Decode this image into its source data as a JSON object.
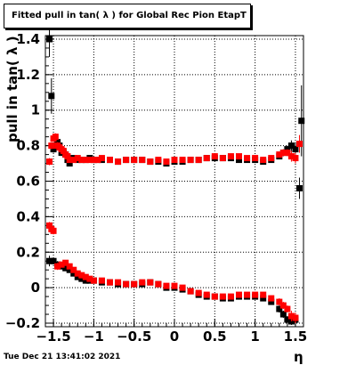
{
  "title": "Fitted pull in tan( λ ) for Global Rec Pion EtapT",
  "timestamp": "Tue Dec 21 13:41:02 2021",
  "chart_data": {
    "type": "scatter",
    "xlabel": "η",
    "ylabel": "pull in tan( λ )",
    "xlim": [
      -1.6,
      1.6
    ],
    "ylim": [
      -0.22,
      1.42
    ],
    "xticks": [
      -1.5,
      -1,
      -0.5,
      0,
      0.5,
      1,
      1.5
    ],
    "xtick_labels": [
      "−1.5",
      "−1",
      "−0.5",
      "0",
      "0.5",
      "1",
      "1.5"
    ],
    "yticks": [
      -0.2,
      0,
      0.2,
      0.4,
      0.6,
      0.8,
      1,
      1.2,
      1.4
    ],
    "ytick_labels": [
      "−0.2",
      "0",
      "0.2",
      "0.4",
      "0.6",
      "0.8",
      "1",
      "1.2",
      "1.4"
    ],
    "grid": true,
    "series": [
      {
        "color": "#000000",
        "x": [
          -1.55,
          -1.525,
          -1.5,
          -1.475,
          -1.45,
          -1.425,
          -1.4,
          -1.375,
          -1.35,
          -1.325,
          -1.3,
          -1.25,
          -1.2,
          -1.15,
          -1.1,
          -1.05,
          -1.0,
          -0.95,
          -0.9,
          -0.8,
          -0.7,
          -0.6,
          -0.5,
          -0.4,
          -0.3,
          -0.2,
          -0.1,
          0.0,
          0.1,
          0.2,
          0.3,
          0.4,
          0.5,
          0.6,
          0.7,
          0.8,
          0.9,
          1.0,
          1.1,
          1.2,
          1.3,
          1.35,
          1.4,
          1.45,
          1.5,
          1.55,
          1.575
        ],
        "y": [
          1.4,
          1.08,
          0.78,
          0.8,
          0.82,
          0.8,
          0.76,
          0.76,
          0.75,
          0.72,
          0.7,
          0.73,
          0.72,
          0.72,
          0.72,
          0.73,
          0.72,
          0.72,
          0.72,
          0.72,
          0.71,
          0.72,
          0.72,
          0.72,
          0.71,
          0.71,
          0.7,
          0.71,
          0.71,
          0.72,
          0.72,
          0.73,
          0.73,
          0.73,
          0.73,
          0.72,
          0.72,
          0.72,
          0.71,
          0.72,
          0.74,
          0.76,
          0.78,
          0.8,
          0.78,
          0.56,
          0.94
        ],
        "yerr": [
          0.1,
          0.1,
          0.02,
          0.02,
          0.02,
          0.02,
          0.01,
          0.01,
          0.01,
          0.01,
          0.01,
          0.01,
          0.01,
          0.01,
          0.01,
          0.01,
          0.01,
          0.01,
          0.01,
          0.01,
          0.01,
          0.01,
          0.01,
          0.01,
          0.01,
          0.01,
          0.01,
          0.01,
          0.01,
          0.01,
          0.01,
          0.01,
          0.01,
          0.01,
          0.01,
          0.01,
          0.01,
          0.01,
          0.01,
          0.01,
          0.01,
          0.02,
          0.02,
          0.03,
          0.04,
          0.06,
          0.2
        ]
      },
      {
        "color": "#ff0000",
        "x": [
          -1.55,
          -1.525,
          -1.5,
          -1.475,
          -1.45,
          -1.425,
          -1.4,
          -1.375,
          -1.35,
          -1.325,
          -1.3,
          -1.25,
          -1.2,
          -1.15,
          -1.1,
          -1.05,
          -1.0,
          -0.95,
          -0.9,
          -0.8,
          -0.7,
          -0.6,
          -0.5,
          -0.4,
          -0.3,
          -0.2,
          -0.1,
          0.0,
          0.1,
          0.2,
          0.3,
          0.4,
          0.5,
          0.6,
          0.7,
          0.8,
          0.9,
          1.0,
          1.1,
          1.2,
          1.3,
          1.35,
          1.4,
          1.45,
          1.5,
          1.55
        ],
        "y": [
          0.71,
          0.8,
          0.84,
          0.85,
          0.8,
          0.79,
          0.78,
          0.77,
          0.75,
          0.74,
          0.72,
          0.72,
          0.73,
          0.72,
          0.72,
          0.72,
          0.72,
          0.72,
          0.73,
          0.72,
          0.71,
          0.72,
          0.72,
          0.72,
          0.71,
          0.72,
          0.71,
          0.72,
          0.72,
          0.72,
          0.72,
          0.73,
          0.74,
          0.73,
          0.74,
          0.74,
          0.73,
          0.73,
          0.72,
          0.73,
          0.75,
          0.76,
          0.76,
          0.74,
          0.73,
          0.81
        ],
        "yerr": [
          0.02,
          0.02,
          0.02,
          0.02,
          0.02,
          0.02,
          0.01,
          0.01,
          0.01,
          0.01,
          0.01,
          0.01,
          0.01,
          0.01,
          0.01,
          0.01,
          0.01,
          0.01,
          0.01,
          0.01,
          0.01,
          0.01,
          0.01,
          0.01,
          0.01,
          0.01,
          0.01,
          0.01,
          0.01,
          0.01,
          0.01,
          0.01,
          0.01,
          0.01,
          0.01,
          0.01,
          0.01,
          0.01,
          0.01,
          0.01,
          0.01,
          0.02,
          0.02,
          0.03,
          0.03,
          0.05
        ]
      },
      {
        "color": "#000000",
        "x": [
          -1.55,
          -1.5,
          -1.45,
          -1.4,
          -1.35,
          -1.3,
          -1.25,
          -1.2,
          -1.15,
          -1.1,
          -1.05,
          -1.0,
          -0.9,
          -0.8,
          -0.7,
          -0.6,
          -0.5,
          -0.4,
          -0.3,
          -0.2,
          -0.1,
          0.0,
          0.1,
          0.2,
          0.3,
          0.4,
          0.5,
          0.6,
          0.7,
          0.8,
          0.9,
          1.0,
          1.1,
          1.2,
          1.3,
          1.35,
          1.4,
          1.45,
          1.5
        ],
        "y": [
          0.15,
          0.15,
          0.13,
          0.12,
          0.11,
          0.1,
          0.08,
          0.06,
          0.05,
          0.04,
          0.04,
          0.04,
          0.03,
          0.03,
          0.02,
          0.02,
          0.02,
          0.02,
          0.03,
          0.02,
          0.0,
          0.0,
          -0.01,
          -0.02,
          -0.04,
          -0.05,
          -0.05,
          -0.06,
          -0.06,
          -0.05,
          -0.05,
          -0.05,
          -0.06,
          -0.08,
          -0.12,
          -0.15,
          -0.18,
          -0.19,
          -0.18
        ],
        "yerr": [
          0.03,
          0.02,
          0.02,
          0.01,
          0.01,
          0.01,
          0.01,
          0.01,
          0.01,
          0.01,
          0.01,
          0.01,
          0.01,
          0.01,
          0.01,
          0.01,
          0.01,
          0.01,
          0.01,
          0.01,
          0.01,
          0.01,
          0.01,
          0.01,
          0.01,
          0.01,
          0.01,
          0.01,
          0.01,
          0.01,
          0.01,
          0.01,
          0.01,
          0.01,
          0.02,
          0.02,
          0.02,
          0.02,
          0.03
        ]
      },
      {
        "color": "#ff0000",
        "x": [
          -1.55,
          -1.525,
          -1.5,
          -1.45,
          -1.4,
          -1.35,
          -1.3,
          -1.25,
          -1.2,
          -1.15,
          -1.1,
          -1.05,
          -1.0,
          -0.9,
          -0.8,
          -0.7,
          -0.6,
          -0.5,
          -0.4,
          -0.3,
          -0.2,
          -0.1,
          0.0,
          0.1,
          0.2,
          0.3,
          0.4,
          0.5,
          0.6,
          0.7,
          0.8,
          0.9,
          1.0,
          1.1,
          1.2,
          1.3,
          1.35,
          1.4,
          1.45,
          1.5
        ],
        "y": [
          0.35,
          0.33,
          0.32,
          0.12,
          0.13,
          0.14,
          0.12,
          0.1,
          0.08,
          0.07,
          0.06,
          0.05,
          0.04,
          0.04,
          0.03,
          0.03,
          0.02,
          0.02,
          0.03,
          0.03,
          0.02,
          0.01,
          0.01,
          0.0,
          -0.02,
          -0.03,
          -0.04,
          -0.05,
          -0.05,
          -0.05,
          -0.04,
          -0.04,
          -0.04,
          -0.04,
          -0.06,
          -0.08,
          -0.1,
          -0.12,
          -0.16,
          -0.17
        ],
        "yerr": [
          0.02,
          0.02,
          0.02,
          0.02,
          0.01,
          0.01,
          0.01,
          0.01,
          0.01,
          0.01,
          0.01,
          0.01,
          0.01,
          0.01,
          0.01,
          0.01,
          0.01,
          0.01,
          0.01,
          0.01,
          0.01,
          0.01,
          0.01,
          0.01,
          0.01,
          0.01,
          0.01,
          0.01,
          0.01,
          0.01,
          0.01,
          0.01,
          0.01,
          0.01,
          0.01,
          0.02,
          0.02,
          0.02,
          0.03,
          0.03
        ]
      }
    ]
  }
}
